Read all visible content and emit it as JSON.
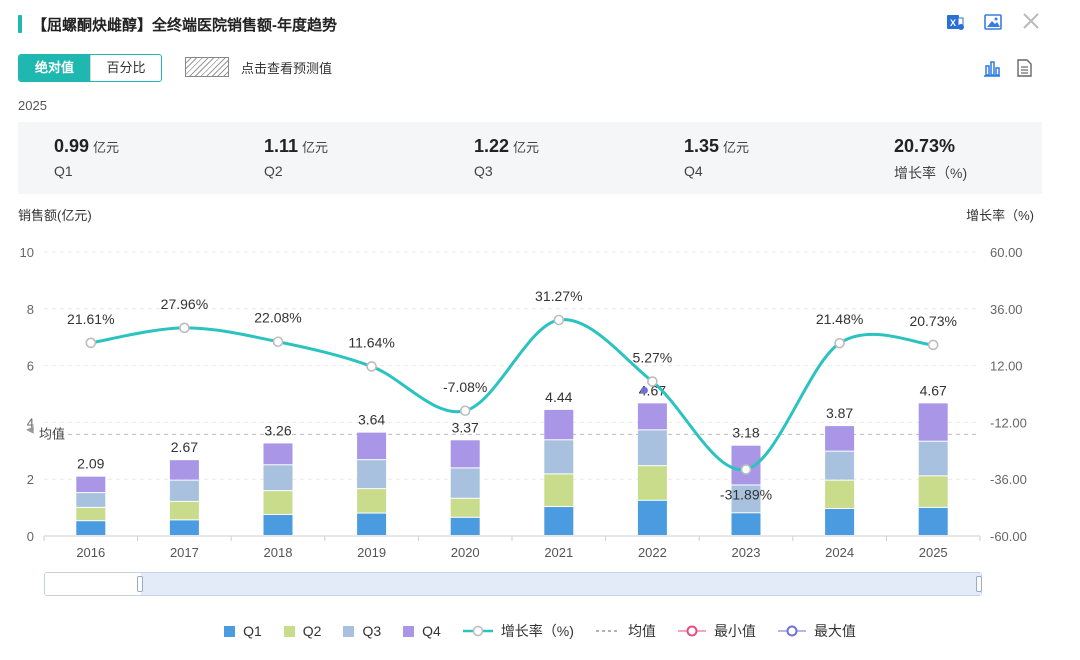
{
  "header": {
    "title": "【屈螺酮炔雌醇】全终端医院销售额-年度趋势"
  },
  "toolbar": {
    "mode_absolute": "绝对值",
    "mode_percent": "百分比",
    "forecast_label": "点击查看预测值"
  },
  "summary": {
    "year": "2025",
    "items": [
      {
        "value": "0.99",
        "unit": "亿元",
        "label": "Q1"
      },
      {
        "value": "1.11",
        "unit": "亿元",
        "label": "Q2"
      },
      {
        "value": "1.22",
        "unit": "亿元",
        "label": "Q3"
      },
      {
        "value": "1.35",
        "unit": "亿元",
        "label": "Q4"
      },
      {
        "value": "20.73%",
        "unit": "",
        "label": "增长率（%)"
      }
    ]
  },
  "legend": {
    "q1": "Q1",
    "q2": "Q2",
    "q3": "Q3",
    "q4": "Q4",
    "growth": "增长率（%)",
    "avg": "均值",
    "min": "最小值",
    "max": "最大值"
  },
  "chart_data": {
    "type": "bar",
    "stacked": true,
    "categories": [
      "2016",
      "2017",
      "2018",
      "2019",
      "2020",
      "2021",
      "2022",
      "2023",
      "2024",
      "2025"
    ],
    "series": [
      {
        "name": "Q1",
        "color": "#4a9be0",
        "values": [
          0.52,
          0.55,
          0.74,
          0.79,
          0.64,
          1.02,
          1.24,
          0.8,
          0.95,
          0.99
        ]
      },
      {
        "name": "Q2",
        "color": "#c9dc8c",
        "values": [
          0.47,
          0.65,
          0.84,
          0.86,
          0.67,
          1.15,
          1.22,
          0.0,
          1.0,
          1.11
        ]
      },
      {
        "name": "Q3",
        "color": "#a8c1de",
        "values": [
          0.52,
          0.75,
          0.91,
          1.02,
          1.07,
          1.2,
          1.26,
          0.98,
          1.02,
          1.22
        ]
      },
      {
        "name": "Q4",
        "color": "#a996e6",
        "values": [
          0.58,
          0.72,
          0.77,
          0.97,
          0.99,
          1.07,
          0.95,
          1.4,
          0.9,
          1.35
        ]
      }
    ],
    "totals": [
      "2.09",
      "2.67",
      "3.26",
      "3.64",
      "3.37",
      "4.44",
      "4.67",
      "3.18",
      "3.87",
      "4.67"
    ],
    "growth": {
      "name": "增长率（%)",
      "color": "#2bc3c0",
      "values": [
        21.61,
        27.96,
        22.08,
        11.64,
        -7.08,
        31.27,
        5.27,
        -31.89,
        21.48,
        20.73
      ],
      "labels": [
        "21.61%",
        "27.96%",
        "22.08%",
        "11.64%",
        "-7.08%",
        "31.27%",
        "5.27%",
        "-31.89%",
        "21.48%",
        "20.73%"
      ]
    },
    "average": {
      "label": "均值",
      "value": 3.58
    },
    "max_marker": {
      "category": "2022",
      "color": "#6f6fd6"
    },
    "ylabel_left": "销售额(亿元)",
    "ylabel_right": "增长率（%)",
    "ylim_left": [
      0,
      10
    ],
    "yticks_left": [
      "0",
      "2",
      "4",
      "6",
      "8",
      "10"
    ],
    "ylim_right": [
      -60,
      60
    ],
    "yticks_right": [
      "-60.00",
      "-36.00",
      "-12.00",
      "12.00",
      "36.00",
      "60.00"
    ],
    "grid": true,
    "legend_position": "bottom"
  }
}
